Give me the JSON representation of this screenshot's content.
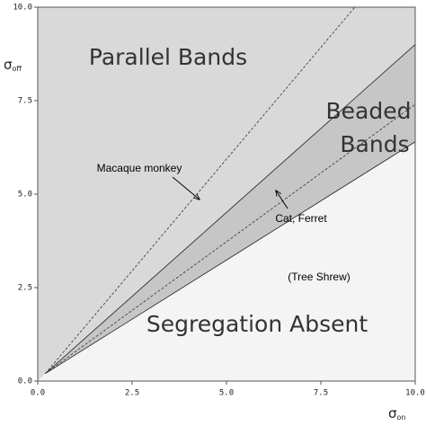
{
  "chart_data": {
    "type": "region",
    "xlim": [
      0,
      10
    ],
    "ylim": [
      0,
      10
    ],
    "xticks": [
      {
        "value": 0,
        "label": "0.0"
      },
      {
        "value": 2.5,
        "label": "2.5"
      },
      {
        "value": 5,
        "label": "5.0"
      },
      {
        "value": 7.5,
        "label": "7.5"
      },
      {
        "value": 10,
        "label": "10.0"
      }
    ],
    "yticks": [
      {
        "value": 0,
        "label": "0.0"
      },
      {
        "value": 2.5,
        "label": "2.5"
      },
      {
        "value": 5,
        "label": "5.0"
      },
      {
        "value": 7.5,
        "label": "7.5"
      },
      {
        "value": 10,
        "label": "10.0"
      }
    ],
    "x_label": {
      "symbol": "σ",
      "subscript": "on"
    },
    "y_label": {
      "symbol": "σ",
      "subscript": "off"
    },
    "boundaries": [
      {
        "style": "solid",
        "x": [
          0.2,
          10
        ],
        "y": [
          0.2,
          9.0
        ]
      },
      {
        "style": "solid",
        "x": [
          0.2,
          10
        ],
        "y": [
          0.2,
          6.4
        ]
      }
    ],
    "reference_lines": [
      {
        "style": "dashed",
        "x": [
          0.2,
          8.4
        ],
        "y": [
          0.2,
          10
        ]
      },
      {
        "style": "dashed",
        "x": [
          0.2,
          10
        ],
        "y": [
          0.2,
          7.4
        ]
      }
    ],
    "regions": [
      {
        "label": [
          "Parallel Bands"
        ],
        "color": "#d9d9d9"
      },
      {
        "label": [
          "Beaded",
          "Bands"
        ],
        "color": "#c6c6c6"
      },
      {
        "label": [
          "Segregation Absent"
        ],
        "color": "#f4f4f4"
      }
    ],
    "annotations": [
      "Macaque monkey",
      "Cat, Ferret",
      "(Tree Shrew)"
    ]
  }
}
